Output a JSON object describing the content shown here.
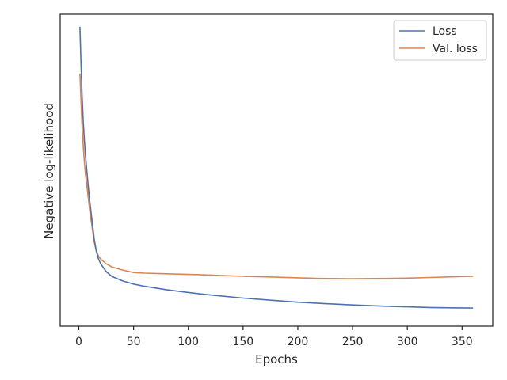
{
  "chart_data": {
    "type": "line",
    "title": "",
    "xlabel": "Epochs",
    "ylabel": "Negative log-likelihood",
    "xlim": [
      -17,
      378
    ],
    "ylim": [
      0,
      1
    ],
    "x_ticks": [
      0,
      50,
      100,
      150,
      200,
      250,
      300,
      350
    ],
    "x_tick_labels": [
      "0",
      "50",
      "100",
      "150",
      "200",
      "250",
      "300",
      "350"
    ],
    "y_tick_labels_shown": false,
    "grid": false,
    "legend_position": "top-right",
    "series": [
      {
        "name": "Loss",
        "color": "#4c72b0",
        "x": [
          1,
          2,
          3,
          4,
          5,
          6,
          8,
          10,
          12,
          14,
          16,
          18,
          20,
          25,
          30,
          40,
          50,
          60,
          80,
          100,
          120,
          150,
          180,
          200,
          220,
          250,
          280,
          300,
          320,
          340,
          360
        ],
        "y": [
          0.96,
          0.84,
          0.74,
          0.66,
          0.6,
          0.55,
          0.47,
          0.4,
          0.34,
          0.28,
          0.24,
          0.215,
          0.2,
          0.175,
          0.16,
          0.145,
          0.135,
          0.128,
          0.117,
          0.108,
          0.1,
          0.09,
          0.082,
          0.077,
          0.073,
          0.068,
          0.064,
          0.062,
          0.06,
          0.059,
          0.058
        ]
      },
      {
        "name": "Val. loss",
        "color": "#dd8452",
        "x": [
          1,
          2,
          3,
          4,
          5,
          6,
          8,
          10,
          12,
          14,
          16,
          18,
          20,
          25,
          30,
          40,
          50,
          60,
          80,
          100,
          120,
          150,
          180,
          200,
          220,
          250,
          280,
          300,
          320,
          340,
          360
        ],
        "y": [
          0.81,
          0.72,
          0.64,
          0.58,
          0.53,
          0.49,
          0.43,
          0.37,
          0.32,
          0.27,
          0.24,
          0.225,
          0.215,
          0.2,
          0.19,
          0.18,
          0.172,
          0.17,
          0.168,
          0.166,
          0.164,
          0.16,
          0.157,
          0.155,
          0.153,
          0.152,
          0.153,
          0.154,
          0.156,
          0.158,
          0.16
        ]
      }
    ]
  }
}
